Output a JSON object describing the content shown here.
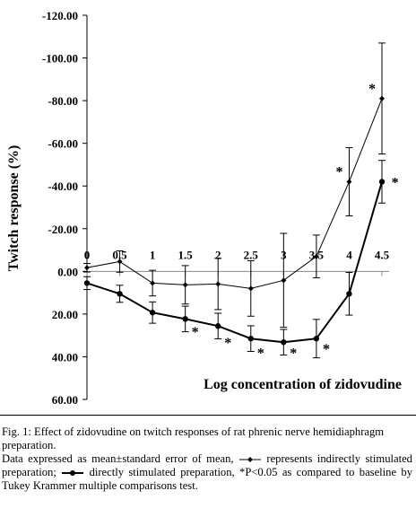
{
  "chart_data": {
    "type": "line",
    "y_label": "Twitch response (%)",
    "x_label": "Log concentration of zidovudine",
    "x": [
      0,
      0.5,
      1,
      1.5,
      2,
      2.5,
      3,
      3.5,
      4,
      4.5
    ],
    "xticks": [
      0,
      0.5,
      1,
      1.5,
      2,
      2.5,
      3,
      3.5,
      4,
      4.5
    ],
    "xlim": [
      0,
      4.5
    ],
    "ylim": [
      60,
      -120
    ],
    "yticks": [
      {
        "value": -120,
        "label": "-120.00"
      },
      {
        "value": -100,
        "label": "-100.00"
      },
      {
        "value": -80,
        "label": "-80.00"
      },
      {
        "value": -60,
        "label": "-60.00"
      },
      {
        "value": -40,
        "label": "-40.00"
      },
      {
        "value": -20,
        "label": "-20.00"
      },
      {
        "value": 0,
        "label": "0.00"
      },
      {
        "value": 20,
        "label": "20.00"
      },
      {
        "value": 40,
        "label": "40.00"
      },
      {
        "value": 60,
        "label": "60.00"
      }
    ],
    "series": [
      {
        "color": "#000000",
        "values": [
          -1.7,
          -4.6,
          5.5,
          6.3,
          5.9,
          8,
          4.2,
          -7,
          -42,
          -81
        ],
        "errors": [
          2,
          5,
          6,
          9,
          12,
          13,
          22,
          10,
          16,
          26
        ]
      },
      {
        "color": "#000000",
        "values": [
          5.5,
          10.5,
          19.3,
          22.3,
          25.6,
          31.5,
          33.2,
          31.5,
          10.5,
          -42
        ],
        "errors": [
          3,
          4,
          5,
          6,
          6,
          6,
          6,
          9,
          10,
          10
        ]
      }
    ],
    "annotations": [
      {
        "text": "*",
        "x": 1.65,
        "y": 28
      },
      {
        "text": "*",
        "x": 2.15,
        "y": 33
      },
      {
        "text": "*",
        "x": 2.65,
        "y": 38
      },
      {
        "text": "*",
        "x": 3.15,
        "y": 38
      },
      {
        "text": "*",
        "x": 3.65,
        "y": 36
      },
      {
        "text": "*",
        "x": 4.7,
        "y": -42
      },
      {
        "text": "*",
        "x": 3.85,
        "y": -47
      },
      {
        "text": "*",
        "x": 4.35,
        "y": -86
      }
    ]
  },
  "caption": {
    "title": "Fig. 1: Effect of zidovudine on twitch responses of rat phrenic nerve hemidiaphragm preparation.",
    "note": [
      "Data expressed as mean±standard error of mean,",
      "represents indirectly stimulated preparation;",
      "directly stimulated preparation, *P<0.05 as compared to baseline by Tukey Krammer multiple comparisons test."
    ]
  }
}
